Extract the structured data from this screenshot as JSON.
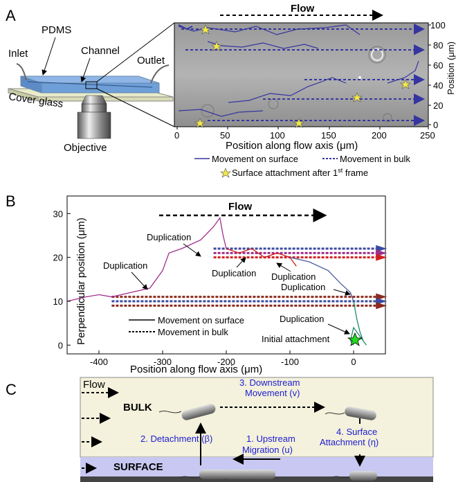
{
  "panel_a": {
    "label": "A",
    "device": {
      "pdms": "PDMS",
      "inlet": "Inlet",
      "channel": "Channel",
      "outlet": "Outlet",
      "cover_glass": "Cover glass",
      "objective": "Objective"
    },
    "flow_label": "Flow",
    "x_axis_title": "Position along flow axis (μm)",
    "y_axis_title": "Position (μm)",
    "x_ticks": [
      "0",
      "50",
      "100",
      "150",
      "200",
      "250"
    ],
    "y_ticks": [
      "0",
      "20",
      "40",
      "60",
      "80",
      "100"
    ],
    "legend": {
      "surface": "Movement on surface",
      "bulk": "Movement in bulk",
      "attach": "Surface attachment after 1",
      "attach_sup": "st",
      "attach_suffix": " frame"
    }
  },
  "panel_b": {
    "label": "B",
    "flow_label": "Flow",
    "annotations": {
      "dup1": "Duplication",
      "dup2": "Duplication",
      "dup3": "Duplication",
      "dup4": "Duplication",
      "dup5": "Duplication",
      "dup6": "Duplication",
      "initial": "Initial attachment"
    },
    "legend": {
      "surface": "Movement on surface",
      "bulk": "Movement in bulk"
    }
  },
  "panel_c": {
    "label": "C",
    "flow": "Flow",
    "bulk": "BULK",
    "surface": "SURFACE",
    "step1_a": "1. Upstream",
    "step1_b": "Migration (u)",
    "step2": "2. Detachment (β)",
    "step3_a": "3. Downstream",
    "step3_b": "Movement (v)",
    "step4_a": "4. Surface",
    "step4_b": "Attachment (η)"
  },
  "chart_data": [
    {
      "type": "line",
      "panel": "B",
      "xlabel": "Position along flow axis (μm)",
      "ylabel": "Perpendicular position (μm)",
      "xlim": [
        -450,
        50
      ],
      "ylim": [
        -2,
        34
      ],
      "x_ticks": [
        -400,
        -300,
        -200,
        -100,
        0
      ],
      "y_ticks": [
        0,
        10,
        20,
        30
      ],
      "series": [
        {
          "values": [
            [
              -450,
              10
            ],
            [
              -420,
              11
            ],
            [
              -400,
              11.5
            ],
            [
              -380,
              11
            ],
            [
              -350,
              12
            ],
            [
              -320,
              13
            ],
            [
              -300,
              17
            ],
            [
              -290,
              21
            ],
            [
              -270,
              22
            ],
            [
              -240,
              24
            ],
            [
              -220,
              27
            ],
            [
              -210,
              29
            ],
            [
              -205,
              25
            ],
            [
              -200,
              22
            ]
          ]
        },
        {
          "values": [
            [
              -200,
              22
            ],
            [
              -180,
              21
            ],
            [
              -160,
              22
            ],
            [
              -140,
              20
            ],
            [
              -120,
              21
            ],
            [
              -100,
              20
            ],
            [
              -90,
              18
            ]
          ]
        },
        {
          "values": [
            [
              -100,
              20
            ],
            [
              -70,
              19
            ],
            [
              -40,
              17
            ],
            [
              -20,
              14
            ],
            [
              -5,
              12
            ],
            [
              0,
              10
            ]
          ]
        },
        {
          "values": [
            [
              0,
              10
            ],
            [
              5,
              6
            ],
            [
              10,
              3
            ],
            [
              15,
              1
            ],
            [
              20,
              0
            ],
            [
              10,
              2
            ],
            [
              0,
              4
            ],
            [
              -5,
              1
            ],
            [
              0,
              0
            ]
          ]
        }
      ],
      "bulk_lines_y": [
        22,
        21,
        20,
        11,
        10,
        9
      ]
    }
  ]
}
